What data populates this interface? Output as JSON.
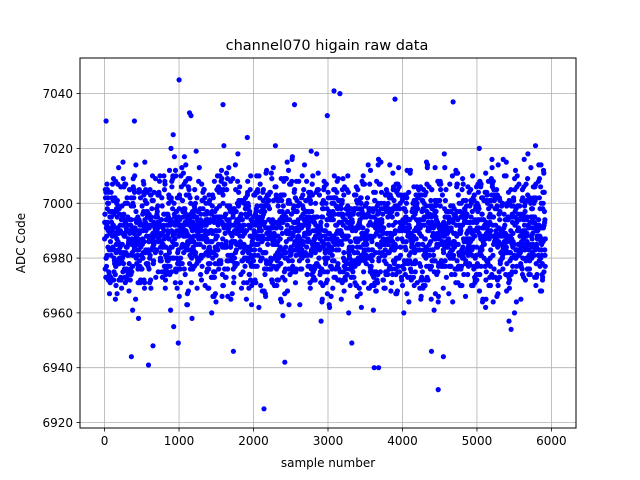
{
  "chart_data": {
    "type": "scatter",
    "title": "channel070 higain raw data",
    "xlabel": "sample number",
    "ylabel": "ADC Code",
    "xlim": [
      -330,
      6330
    ],
    "ylim": [
      6918,
      7053
    ],
    "x_ticks": [
      0,
      1000,
      2000,
      3000,
      4000,
      5000,
      6000
    ],
    "y_ticks": [
      6920,
      6940,
      6960,
      6980,
      7000,
      7020,
      7040
    ],
    "grid": true,
    "marker_color": "#0000ff",
    "series": [
      {
        "n_points": 5920,
        "x_range": [
          0,
          5919
        ],
        "center": 6989,
        "spread_sd": 11,
        "notable_points": [
          {
            "x": 1000,
            "y": 7045
          },
          {
            "x": 3080,
            "y": 7041
          },
          {
            "x": 3160,
            "y": 7040
          },
          {
            "x": 3900,
            "y": 7038
          },
          {
            "x": 4680,
            "y": 7037
          },
          {
            "x": 1590,
            "y": 7036
          },
          {
            "x": 2550,
            "y": 7036
          },
          {
            "x": 1140,
            "y": 7033
          },
          {
            "x": 1160,
            "y": 7032
          },
          {
            "x": 2990,
            "y": 7032
          },
          {
            "x": 20,
            "y": 7030
          },
          {
            "x": 400,
            "y": 7030
          },
          {
            "x": 2140,
            "y": 6925
          },
          {
            "x": 4480,
            "y": 6932
          },
          {
            "x": 590,
            "y": 6941
          },
          {
            "x": 2420,
            "y": 6942
          },
          {
            "x": 3620,
            "y": 6940
          },
          {
            "x": 3680,
            "y": 6940
          },
          {
            "x": 360,
            "y": 6944
          },
          {
            "x": 1730,
            "y": 6946
          },
          {
            "x": 4390,
            "y": 6946
          },
          {
            "x": 4550,
            "y": 6944
          },
          {
            "x": 650,
            "y": 6948
          },
          {
            "x": 3320,
            "y": 6949
          },
          {
            "x": 990,
            "y": 6949
          }
        ]
      }
    ]
  }
}
